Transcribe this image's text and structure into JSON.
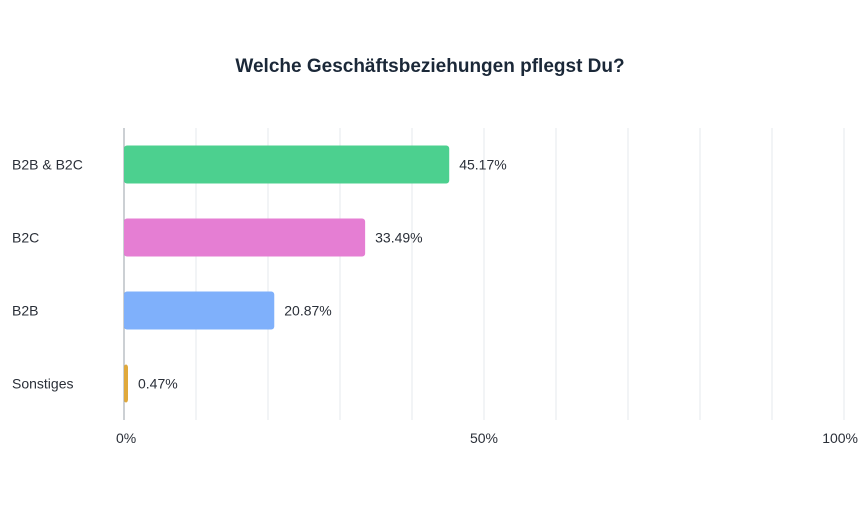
{
  "chart_data": {
    "type": "bar",
    "orientation": "horizontal",
    "title": "Welche Geschäftsbeziehungen pflegst Du?",
    "categories": [
      "B2B & B2C",
      "B2C",
      "B2B",
      "Sonstiges"
    ],
    "values": [
      45.17,
      33.49,
      20.87,
      0.47
    ],
    "value_labels": [
      "45.17%",
      "33.49%",
      "20.87%",
      "0.47%"
    ],
    "colors": [
      "#4cd08f",
      "#e57ed3",
      "#7fb0fb",
      "#e0a93c"
    ],
    "xlim": [
      0,
      100
    ],
    "x_ticks": [
      0,
      50,
      100
    ],
    "x_tick_labels": [
      "0%",
      "50%",
      "100%"
    ],
    "xlabel": "",
    "ylabel": "",
    "grid": true
  }
}
